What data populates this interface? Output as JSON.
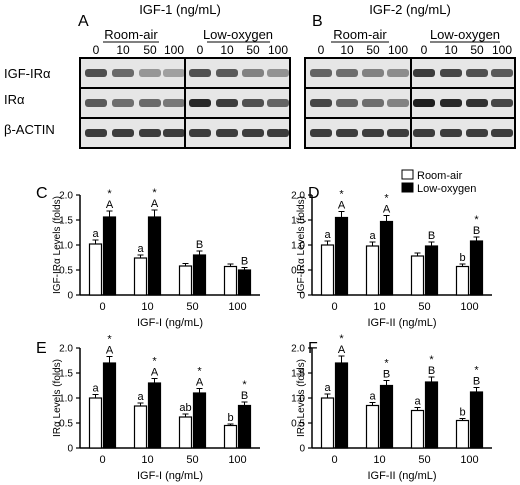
{
  "blot": {
    "panels": [
      {
        "letter": "A",
        "title": "IGF-1 (ng/mL)",
        "groups": [
          "Room-air",
          "Low-oxygen"
        ],
        "doses": [
          "0",
          "10",
          "50",
          "100",
          "0",
          "10",
          "50",
          "100"
        ]
      },
      {
        "letter": "B",
        "title": "IGF-2 (ng/mL)",
        "groups": [
          "Room-air",
          "Low-oxygen"
        ],
        "doses": [
          "0",
          "10",
          "50",
          "100",
          "0",
          "10",
          "50",
          "100"
        ]
      }
    ],
    "row_labels": [
      "IGF-IRα",
      "IRα",
      "β-ACTIN"
    ],
    "intensity": {
      "A": [
        [
          0.75,
          0.62,
          0.4,
          0.35,
          0.75,
          0.7,
          0.5,
          0.42
        ],
        [
          0.7,
          0.6,
          0.62,
          0.55,
          0.95,
          0.85,
          0.75,
          0.65
        ],
        [
          0.85,
          0.85,
          0.85,
          0.85,
          0.85,
          0.85,
          0.85,
          0.85
        ]
      ],
      "B": [
        [
          0.65,
          0.6,
          0.5,
          0.45,
          0.85,
          0.8,
          0.75,
          0.7
        ],
        [
          0.8,
          0.65,
          0.6,
          0.5,
          1.0,
          0.95,
          0.9,
          0.8
        ],
        [
          0.85,
          0.85,
          0.85,
          0.85,
          0.85,
          0.85,
          0.85,
          0.85
        ]
      ]
    }
  },
  "legend": [
    "Room-air",
    "Low-oxygen"
  ],
  "chart_data": [
    {
      "type": "bar",
      "letter": "C",
      "categories": [
        "0",
        "10",
        "50",
        "100"
      ],
      "xlabel": "IGF-I (ng/mL)",
      "ylabel": "IGF-IRα Levels (folds)",
      "ylim": [
        0,
        2.0
      ],
      "yticks": [
        "0",
        "0.5",
        "1.0",
        "1.5",
        "2.0"
      ],
      "series": [
        {
          "name": "Room-air",
          "values": [
            1.02,
            0.74,
            0.58,
            0.57
          ],
          "errors": [
            0.08,
            0.06,
            0.05,
            0.05
          ],
          "labels": [
            "a",
            "a",
            "",
            ""
          ]
        },
        {
          "name": "Low-oxygen",
          "values": [
            1.56,
            1.56,
            0.8,
            0.5
          ],
          "errors": [
            0.12,
            0.14,
            0.08,
            0.05
          ],
          "labels": [
            "A",
            "A",
            "B",
            "B"
          ]
        }
      ],
      "asterisks": [
        "*",
        "*",
        "",
        ""
      ]
    },
    {
      "type": "bar",
      "letter": "D",
      "categories": [
        "0",
        "10",
        "50",
        "100"
      ],
      "xlabel": "IGF-II (ng/mL)",
      "ylabel": "IGF-IRα Levels (folds)",
      "ylim": [
        0,
        2.0
      ],
      "yticks": [
        "0",
        "0.5",
        "1.0",
        "1.5",
        "2.0"
      ],
      "series": [
        {
          "name": "Room-air",
          "values": [
            1.0,
            0.98,
            0.78,
            0.57
          ],
          "errors": [
            0.08,
            0.08,
            0.06,
            0.05
          ],
          "labels": [
            "a",
            "a",
            "",
            "b"
          ]
        },
        {
          "name": "Low-oxygen",
          "values": [
            1.55,
            1.47,
            0.98,
            1.08
          ],
          "errors": [
            0.12,
            0.12,
            0.08,
            0.08
          ],
          "labels": [
            "A",
            "A",
            "B",
            "B"
          ]
        }
      ],
      "asterisks": [
        "*",
        "*",
        "",
        "*"
      ]
    },
    {
      "type": "bar",
      "letter": "E",
      "categories": [
        "0",
        "10",
        "50",
        "100"
      ],
      "xlabel": "IGF-I (ng/mL)",
      "ylabel": "IRα Levels (folds)",
      "ylim": [
        0,
        2.0
      ],
      "yticks": [
        "0",
        "0.5",
        "1.0",
        "1.5",
        "2.0"
      ],
      "series": [
        {
          "name": "Room-air",
          "values": [
            1.0,
            0.84,
            0.62,
            0.45
          ],
          "errors": [
            0.07,
            0.06,
            0.06,
            0.03
          ],
          "labels": [
            "a",
            "a",
            "ab",
            "b"
          ]
        },
        {
          "name": "Low-oxygen",
          "values": [
            1.7,
            1.3,
            1.1,
            0.85
          ],
          "errors": [
            0.13,
            0.09,
            0.09,
            0.07
          ],
          "labels": [
            "A",
            "A",
            "A",
            "B"
          ]
        }
      ],
      "asterisks": [
        "*",
        "*",
        "*",
        "*"
      ]
    },
    {
      "type": "bar",
      "letter": "F",
      "categories": [
        "0",
        "10",
        "50",
        "100"
      ],
      "xlabel": "IGF-II (ng/mL)",
      "ylabel": "IRα Levels (folds)",
      "ylim": [
        0,
        2.0
      ],
      "yticks": [
        "0",
        "0.5",
        "1.0",
        "1.5",
        "2.0"
      ],
      "series": [
        {
          "name": "Room-air",
          "values": [
            1.0,
            0.85,
            0.75,
            0.55
          ],
          "errors": [
            0.08,
            0.06,
            0.06,
            0.04
          ],
          "labels": [
            "a",
            "a",
            "a",
            "b"
          ]
        },
        {
          "name": "Low-oxygen",
          "values": [
            1.7,
            1.25,
            1.32,
            1.12
          ],
          "errors": [
            0.14,
            0.1,
            0.1,
            0.09
          ],
          "labels": [
            "A",
            "B",
            "B",
            "B"
          ]
        }
      ],
      "asterisks": [
        "*",
        "*",
        "*",
        "*"
      ]
    }
  ]
}
